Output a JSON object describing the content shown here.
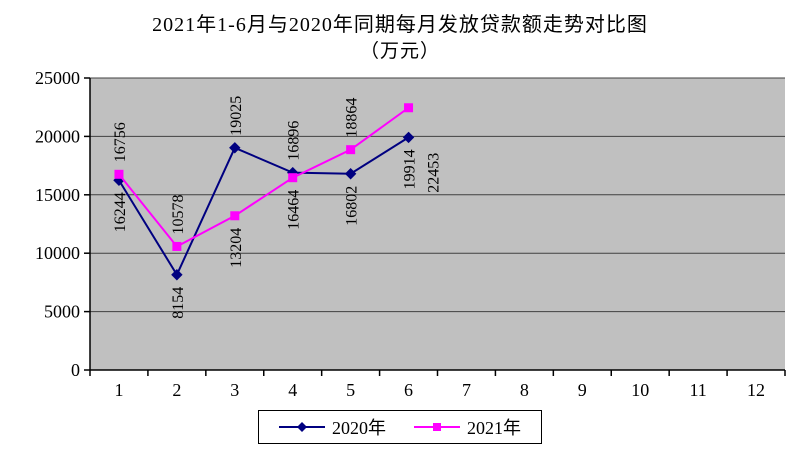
{
  "title": {
    "line1": "2021年1-6月与2020年同期每月发放贷款额走势对比图",
    "line2": "（万元）"
  },
  "chart_data": {
    "type": "line",
    "categories": [
      "1",
      "2",
      "3",
      "4",
      "5",
      "6",
      "7",
      "8",
      "9",
      "10",
      "11",
      "12"
    ],
    "series": [
      {
        "name": "2020年",
        "color": "#000080",
        "marker": "diamond",
        "values": [
          16244,
          8154,
          19025,
          16896,
          16802,
          19914
        ]
      },
      {
        "name": "2021年",
        "color": "#FF00FF",
        "marker": "square",
        "values": [
          16756,
          10578,
          13204,
          16464,
          18864,
          22453
        ]
      }
    ],
    "ylim": [
      0,
      25000
    ],
    "yticks": [
      0,
      5000,
      10000,
      15000,
      20000,
      25000
    ],
    "grid": true,
    "plot_bg": "#C0C0C0",
    "gridline_color": "#404040",
    "axis_color": "#000000",
    "legend_position": "bottom",
    "xlabel": "",
    "ylabel": ""
  }
}
